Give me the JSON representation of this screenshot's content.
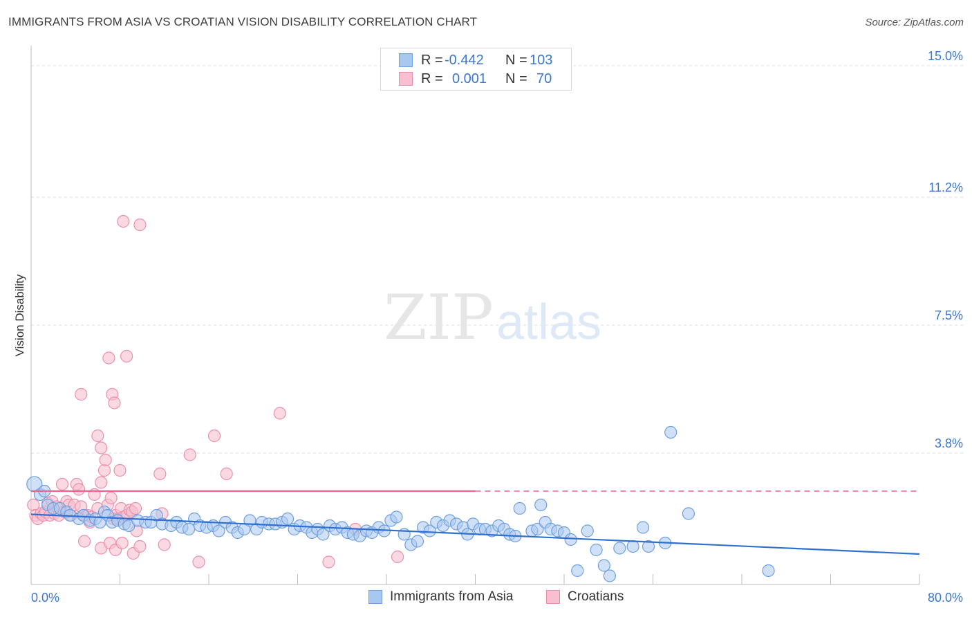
{
  "title": "IMMIGRANTS FROM ASIA VS CROATIAN VISION DISABILITY CORRELATION CHART",
  "source": "Source: ZipAtlas.com",
  "watermark": {
    "zip": "ZIP",
    "atlas": "atlas"
  },
  "legend": {
    "rows": [
      {
        "r_label": "R = ",
        "r_value": "-0.442",
        "n_label": "N = ",
        "n_value": "103"
      },
      {
        "r_label": "R = ",
        "r_value": "0.001",
        "n_label": "N = ",
        "n_value": "70"
      }
    ]
  },
  "colors": {
    "blue_fill": "#a9c8f0",
    "blue_stroke": "#6c9ee0",
    "blue_line": "#2f6fcf",
    "pink_fill": "#f7bfd0",
    "pink_stroke": "#ec8fab",
    "pink_line": "#e8658f",
    "axis_label": "#3a76d0",
    "grid": "#dcdcdc"
  },
  "chart_data": {
    "type": "scatter",
    "title": "IMMIGRANTS FROM ASIA VS CROATIAN VISION DISABILITY CORRELATION CHART",
    "xlabel": "",
    "ylabel": "Vision Disability",
    "xlim": [
      0,
      80
    ],
    "ylim": [
      0,
      15.5
    ],
    "x_tick_labels": [
      "0.0%",
      "80.0%"
    ],
    "y_ticks": [
      3.8,
      7.5,
      11.2,
      15.0
    ],
    "y_tick_labels": [
      "3.8%",
      "7.5%",
      "11.2%",
      "15.0%"
    ],
    "series": [
      {
        "name": "Immigrants from Asia",
        "color": "blue",
        "trend": {
          "x": [
            0,
            80
          ],
          "y": [
            2.03,
            0.88
          ],
          "solid_until": 80
        },
        "points": [
          [
            0.3,
            2.9
          ],
          [
            0.8,
            2.6
          ],
          [
            1.2,
            2.7
          ],
          [
            1.5,
            2.3
          ],
          [
            2.0,
            2.2
          ],
          [
            2.6,
            2.2
          ],
          [
            3.2,
            2.1
          ],
          [
            3.5,
            2.0
          ],
          [
            4.3,
            1.9
          ],
          [
            4.7,
            2.0
          ],
          [
            5.3,
            1.85
          ],
          [
            5.8,
            1.9
          ],
          [
            6.2,
            1.8
          ],
          [
            6.6,
            2.1
          ],
          [
            6.9,
            2.0
          ],
          [
            7.3,
            1.8
          ],
          [
            7.8,
            1.85
          ],
          [
            8.4,
            1.75
          ],
          [
            8.8,
            1.7
          ],
          [
            9.6,
            1.85
          ],
          [
            10.3,
            1.8
          ],
          [
            10.8,
            1.8
          ],
          [
            11.3,
            2.0
          ],
          [
            11.8,
            1.75
          ],
          [
            12.6,
            1.7
          ],
          [
            13.1,
            1.8
          ],
          [
            13.6,
            1.65
          ],
          [
            14.2,
            1.6
          ],
          [
            14.7,
            1.9
          ],
          [
            15.2,
            1.7
          ],
          [
            15.8,
            1.65
          ],
          [
            16.4,
            1.7
          ],
          [
            16.9,
            1.55
          ],
          [
            17.5,
            1.8
          ],
          [
            18.1,
            1.65
          ],
          [
            18.6,
            1.5
          ],
          [
            19.2,
            1.6
          ],
          [
            19.7,
            1.85
          ],
          [
            20.3,
            1.6
          ],
          [
            20.8,
            1.8
          ],
          [
            21.4,
            1.75
          ],
          [
            22.0,
            1.75
          ],
          [
            22.6,
            1.8
          ],
          [
            23.1,
            1.9
          ],
          [
            23.7,
            1.6
          ],
          [
            24.2,
            1.7
          ],
          [
            24.8,
            1.65
          ],
          [
            25.3,
            1.5
          ],
          [
            25.8,
            1.6
          ],
          [
            26.3,
            1.45
          ],
          [
            26.9,
            1.7
          ],
          [
            27.4,
            1.6
          ],
          [
            28.0,
            1.65
          ],
          [
            28.5,
            1.5
          ],
          [
            29.0,
            1.45
          ],
          [
            29.6,
            1.4
          ],
          [
            30.2,
            1.55
          ],
          [
            30.7,
            1.5
          ],
          [
            31.3,
            1.65
          ],
          [
            31.8,
            1.55
          ],
          [
            32.4,
            1.85
          ],
          [
            32.9,
            1.95
          ],
          [
            33.6,
            1.45
          ],
          [
            34.2,
            1.15
          ],
          [
            34.8,
            1.25
          ],
          [
            35.3,
            1.65
          ],
          [
            35.9,
            1.55
          ],
          [
            36.5,
            1.8
          ],
          [
            37.1,
            1.7
          ],
          [
            37.7,
            1.85
          ],
          [
            38.3,
            1.75
          ],
          [
            38.9,
            1.65
          ],
          [
            39.3,
            1.45
          ],
          [
            39.8,
            1.75
          ],
          [
            40.4,
            1.6
          ],
          [
            40.9,
            1.6
          ],
          [
            41.5,
            1.55
          ],
          [
            42.1,
            1.7
          ],
          [
            42.6,
            1.6
          ],
          [
            43.1,
            1.45
          ],
          [
            43.6,
            1.4
          ],
          [
            44.0,
            2.2
          ],
          [
            45.1,
            1.55
          ],
          [
            45.6,
            1.6
          ],
          [
            45.9,
            2.3
          ],
          [
            46.3,
            1.8
          ],
          [
            46.8,
            1.6
          ],
          [
            47.4,
            1.55
          ],
          [
            48.0,
            1.5
          ],
          [
            48.6,
            1.3
          ],
          [
            49.2,
            0.4
          ],
          [
            50.1,
            1.55
          ],
          [
            50.9,
            1.0
          ],
          [
            51.6,
            0.55
          ],
          [
            52.1,
            0.25
          ],
          [
            53.0,
            1.05
          ],
          [
            54.2,
            1.1
          ],
          [
            55.1,
            1.65
          ],
          [
            55.6,
            1.1
          ],
          [
            57.1,
            1.2
          ],
          [
            57.6,
            4.4
          ],
          [
            59.2,
            2.05
          ],
          [
            66.4,
            0.4
          ]
        ]
      },
      {
        "name": "Croatians",
        "color": "pink",
        "trend": {
          "x": [
            0,
            80
          ],
          "y": [
            2.7,
            2.7
          ],
          "solid_until": 40
        },
        "points": [
          [
            0.2,
            2.3
          ],
          [
            0.4,
            2.0
          ],
          [
            0.6,
            1.9
          ],
          [
            0.9,
            2.05
          ],
          [
            1.1,
            2.0
          ],
          [
            1.3,
            2.1
          ],
          [
            1.5,
            2.35
          ],
          [
            1.7,
            2.0
          ],
          [
            1.9,
            2.4
          ],
          [
            2.1,
            2.05
          ],
          [
            2.3,
            2.25
          ],
          [
            2.5,
            2.0
          ],
          [
            2.8,
            2.9
          ],
          [
            3.0,
            2.1
          ],
          [
            3.2,
            2.4
          ],
          [
            3.4,
            2.3
          ],
          [
            3.6,
            2.0
          ],
          [
            3.9,
            2.3
          ],
          [
            4.1,
            2.9
          ],
          [
            4.3,
            2.75
          ],
          [
            4.5,
            2.25
          ],
          [
            4.8,
            2.0
          ],
          [
            5.1,
            2.0
          ],
          [
            5.3,
            1.8
          ],
          [
            5.5,
            1.95
          ],
          [
            5.7,
            2.6
          ],
          [
            6.0,
            2.2
          ],
          [
            6.3,
            2.95
          ],
          [
            6.6,
            3.3
          ],
          [
            6.9,
            2.3
          ],
          [
            7.2,
            2.5
          ],
          [
            7.4,
            1.9
          ],
          [
            7.6,
            2.0
          ],
          [
            7.9,
            1.9
          ],
          [
            8.1,
            2.2
          ],
          [
            8.3,
            1.95
          ],
          [
            8.6,
            2.0
          ],
          [
            8.9,
            2.15
          ],
          [
            9.1,
            2.1
          ],
          [
            9.4,
            2.2
          ],
          [
            4.5,
            5.5
          ],
          [
            6.0,
            4.3
          ],
          [
            6.3,
            3.95
          ],
          [
            6.7,
            3.6
          ],
          [
            7.0,
            6.55
          ],
          [
            7.3,
            5.5
          ],
          [
            7.5,
            5.25
          ],
          [
            8.0,
            3.3
          ],
          [
            8.3,
            10.5
          ],
          [
            8.6,
            6.6
          ],
          [
            9.5,
            1.55
          ],
          [
            9.8,
            10.4
          ],
          [
            11.6,
            3.2
          ],
          [
            11.8,
            2.05
          ],
          [
            14.3,
            3.75
          ],
          [
            16.5,
            4.3
          ],
          [
            17.6,
            3.2
          ],
          [
            22.4,
            4.95
          ],
          [
            4.8,
            1.25
          ],
          [
            6.3,
            1.05
          ],
          [
            7.1,
            1.2
          ],
          [
            7.6,
            1.0
          ],
          [
            8.2,
            1.2
          ],
          [
            9.2,
            0.9
          ],
          [
            9.8,
            1.1
          ],
          [
            12.0,
            1.15
          ],
          [
            15.1,
            0.65
          ],
          [
            26.8,
            0.65
          ],
          [
            29.2,
            1.6
          ],
          [
            33.0,
            0.8
          ]
        ]
      }
    ]
  },
  "bottom_legend": [
    "Immigrants from Asia",
    "Croatians"
  ]
}
